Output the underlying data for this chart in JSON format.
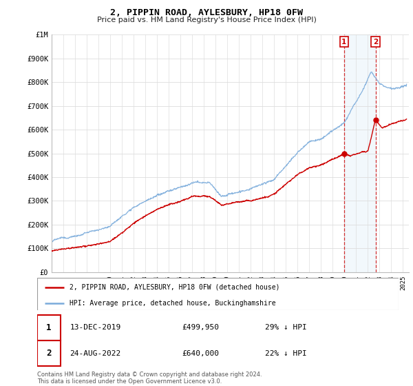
{
  "title": "2, PIPPIN ROAD, AYLESBURY, HP18 0FW",
  "subtitle": "Price paid vs. HM Land Registry's House Price Index (HPI)",
  "ylim": [
    0,
    1000000
  ],
  "xlim_start": 1995.0,
  "xlim_end": 2025.5,
  "hpi_color": "#7aabdb",
  "price_color": "#cc0000",
  "highlight_color": "#d6e8f7",
  "sale1_x": 2019.96,
  "sale1_y": 499950,
  "sale2_x": 2022.65,
  "sale2_y": 640000,
  "sale1_label": "13-DEC-2019",
  "sale1_price": "£499,950",
  "sale1_hpi": "29% ↓ HPI",
  "sale2_label": "24-AUG-2022",
  "sale2_price": "£640,000",
  "sale2_hpi": "22% ↓ HPI",
  "legend_line1": "2, PIPPIN ROAD, AYLESBURY, HP18 0FW (detached house)",
  "legend_line2": "HPI: Average price, detached house, Buckinghamshire",
  "footnote": "Contains HM Land Registry data © Crown copyright and database right 2024.\nThis data is licensed under the Open Government Licence v3.0.",
  "background_color": "#ffffff",
  "grid_color": "#dddddd"
}
